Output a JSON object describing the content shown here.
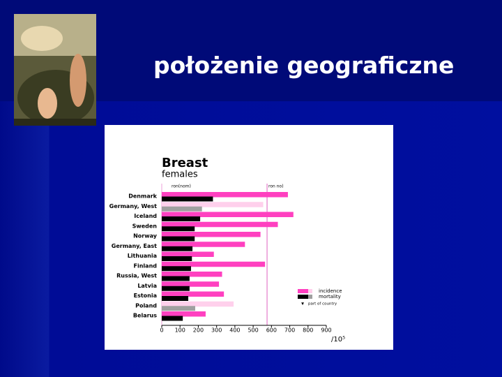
{
  "slide_title": "położenie geograficzne",
  "chart_data": {
    "type": "bar",
    "orientation": "horizontal",
    "title": "Breast",
    "subtitle": "females",
    "categories": [
      "Denmark",
      "Germany, West",
      "Iceland",
      "Sweden",
      "Norway",
      "Germany, East",
      "Lithuania",
      "Finland",
      "Russia, West",
      "Latvia",
      "Estonia",
      "Poland",
      "Belarus"
    ],
    "series": [
      {
        "name": "incidence",
        "color": "#ff40c0",
        "part_color": "#ffd0ec",
        "values": [
          690,
          555,
          720,
          635,
          540,
          455,
          285,
          565,
          330,
          313,
          340,
          393,
          240
        ]
      },
      {
        "name": "mortality",
        "color": "#000000",
        "part_color": "#a0a0a0",
        "values": [
          280,
          220,
          210,
          180,
          180,
          168,
          165,
          160,
          152,
          152,
          145,
          183,
          115
        ]
      }
    ],
    "part_of_country": [
      false,
      true,
      false,
      false,
      false,
      false,
      false,
      false,
      false,
      false,
      false,
      true,
      false
    ],
    "part_of_country_label": "part of country",
    "xlim": [
      0,
      900
    ],
    "xticks": [
      0,
      100,
      200,
      300,
      400,
      500,
      600,
      700,
      800,
      900
    ],
    "x_unit_label": "/10⁵",
    "axis_note": "ron(nom)",
    "reference_line": {
      "value": 576,
      "label": "ron no)",
      "color": "#e060c0"
    },
    "legend": "right"
  }
}
